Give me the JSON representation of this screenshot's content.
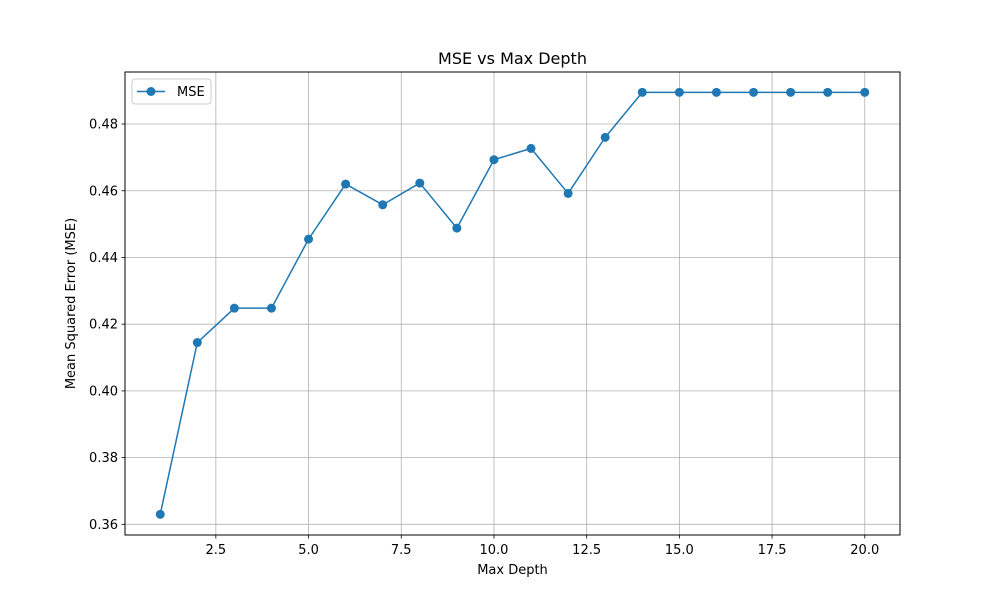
{
  "chart_data": {
    "type": "line",
    "title": "MSE vs Max Depth",
    "xlabel": "Max Depth",
    "ylabel": "Mean Squared Error (MSE)",
    "xlim": [
      0.05,
      20.95
    ],
    "ylim": [
      0.3568,
      0.4956
    ],
    "xticks": [
      2.5,
      5.0,
      7.5,
      10.0,
      12.5,
      15.0,
      17.5,
      20.0
    ],
    "xtick_labels": [
      "2.5",
      "5.0",
      "7.5",
      "10.0",
      "12.5",
      "15.0",
      "17.5",
      "20.0"
    ],
    "yticks": [
      0.36,
      0.38,
      0.4,
      0.42,
      0.44,
      0.46,
      0.48
    ],
    "ytick_labels": [
      "0.36",
      "0.38",
      "0.40",
      "0.42",
      "0.44",
      "0.46",
      "0.48"
    ],
    "grid": true,
    "legend_position": "top-left",
    "series": [
      {
        "name": "MSE",
        "color": "#1f77b4",
        "marker": "circle",
        "x": [
          1,
          2,
          3,
          4,
          5,
          6,
          7,
          8,
          9,
          10,
          11,
          12,
          13,
          14,
          15,
          16,
          17,
          18,
          19,
          20
        ],
        "y": [
          0.363,
          0.4145,
          0.4248,
          0.4248,
          0.4455,
          0.462,
          0.4558,
          0.4623,
          0.4488,
          0.4693,
          0.4727,
          0.4592,
          0.476,
          0.4895,
          0.4895,
          0.4895,
          0.4895,
          0.4895,
          0.4895,
          0.4895
        ]
      }
    ]
  }
}
